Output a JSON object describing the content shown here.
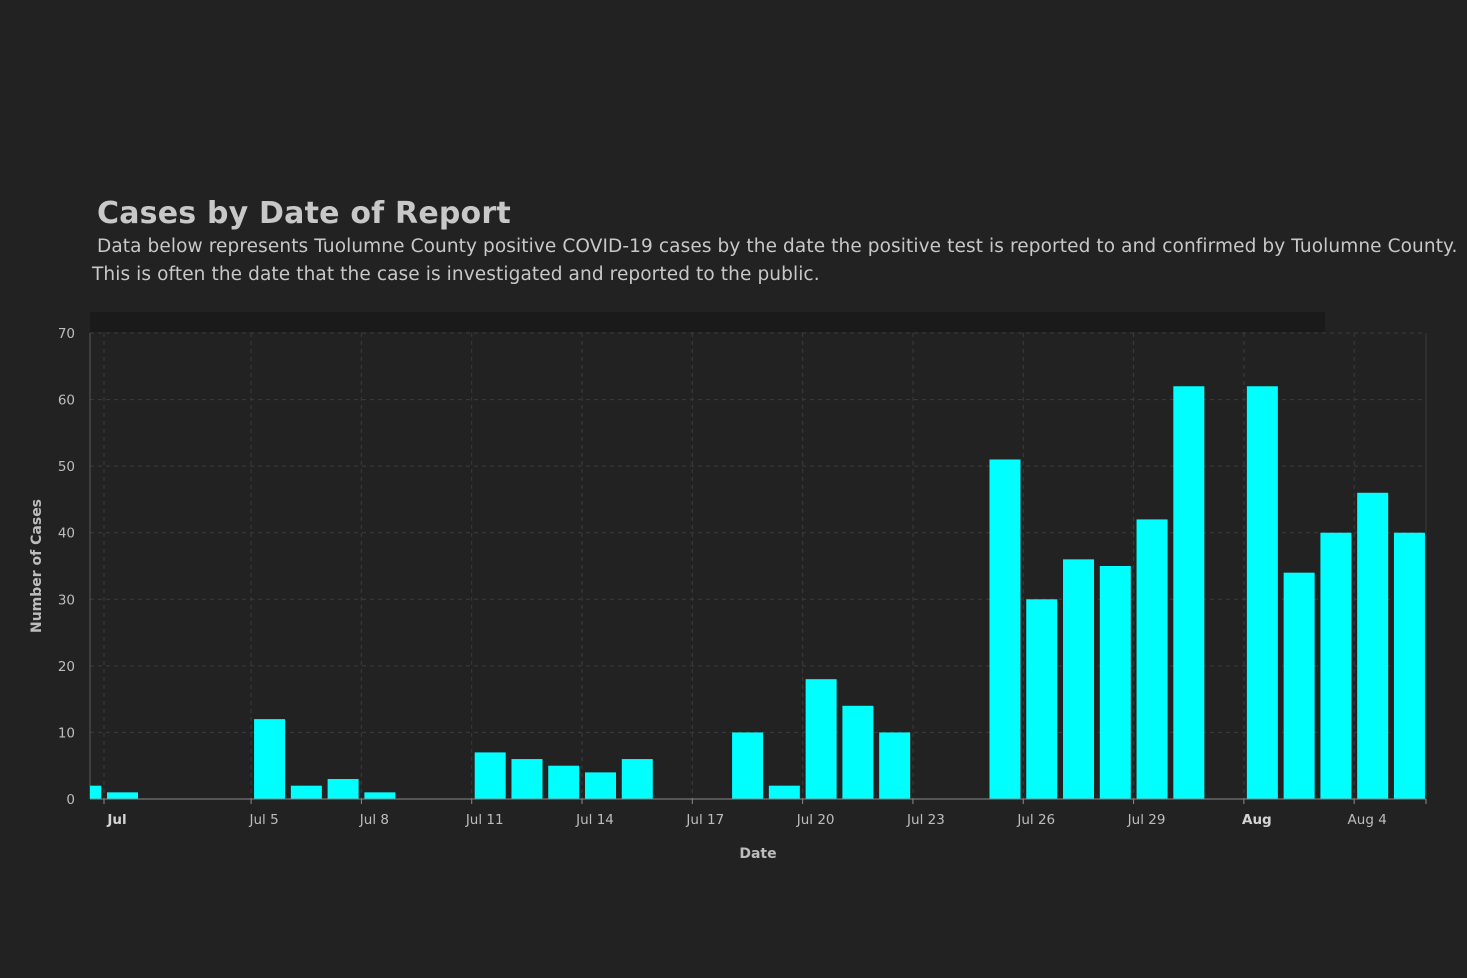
{
  "header": {
    "title": "Cases by Date of Report",
    "description_line1": "Data below represents Tuolumne County positive COVID-19 cases by the date the positive test is reported to and confirmed by Tuolumne County.",
    "description_line2": "This is often the date  that the case is investigated and reported to the public."
  },
  "colors": {
    "background": "#222222",
    "bar": "#00ffff",
    "grid": "#3c3c3c",
    "text": "#c8c8c8"
  },
  "chart_data": {
    "type": "bar",
    "title": "Cases by Date of Report",
    "xlabel": "Date",
    "ylabel": "Number of Cases",
    "ylim": [
      0,
      70
    ],
    "yticks": [
      0,
      10,
      20,
      30,
      40,
      50,
      60,
      70
    ],
    "x_tick_labels": [
      {
        "date": "2020-07-01",
        "label": "Jul",
        "major": true
      },
      {
        "date": "2020-07-05",
        "label": "Jul 5",
        "major": false
      },
      {
        "date": "2020-07-08",
        "label": "Jul 8",
        "major": false
      },
      {
        "date": "2020-07-11",
        "label": "Jul 11",
        "major": false
      },
      {
        "date": "2020-07-14",
        "label": "Jul 14",
        "major": false
      },
      {
        "date": "2020-07-17",
        "label": "Jul 17",
        "major": false
      },
      {
        "date": "2020-07-20",
        "label": "Jul 20",
        "major": false
      },
      {
        "date": "2020-07-23",
        "label": "Jul 23",
        "major": false
      },
      {
        "date": "2020-07-26",
        "label": "Jul 26",
        "major": false
      },
      {
        "date": "2020-07-29",
        "label": "Jul 29",
        "major": false
      },
      {
        "date": "2020-08-01",
        "label": "Aug",
        "major": true
      },
      {
        "date": "2020-08-04",
        "label": "Aug 4",
        "major": false
      }
    ],
    "grid": true,
    "series": [
      {
        "points": [
          {
            "date": "2020-06-30",
            "value": 2
          },
          {
            "date": "2020-07-01",
            "value": 1
          },
          {
            "date": "2020-07-02",
            "value": 0
          },
          {
            "date": "2020-07-03",
            "value": 0
          },
          {
            "date": "2020-07-04",
            "value": 0
          },
          {
            "date": "2020-07-05",
            "value": 12
          },
          {
            "date": "2020-07-06",
            "value": 2
          },
          {
            "date": "2020-07-07",
            "value": 3
          },
          {
            "date": "2020-07-08",
            "value": 1
          },
          {
            "date": "2020-07-09",
            "value": 0
          },
          {
            "date": "2020-07-10",
            "value": 0
          },
          {
            "date": "2020-07-11",
            "value": 7
          },
          {
            "date": "2020-07-12",
            "value": 6
          },
          {
            "date": "2020-07-13",
            "value": 5
          },
          {
            "date": "2020-07-14",
            "value": 4
          },
          {
            "date": "2020-07-15",
            "value": 6
          },
          {
            "date": "2020-07-16",
            "value": 0
          },
          {
            "date": "2020-07-17",
            "value": 0
          },
          {
            "date": "2020-07-18",
            "value": 10
          },
          {
            "date": "2020-07-19",
            "value": 2
          },
          {
            "date": "2020-07-20",
            "value": 18
          },
          {
            "date": "2020-07-21",
            "value": 14
          },
          {
            "date": "2020-07-22",
            "value": 10
          },
          {
            "date": "2020-07-23",
            "value": 0
          },
          {
            "date": "2020-07-24",
            "value": 0
          },
          {
            "date": "2020-07-25",
            "value": 51
          },
          {
            "date": "2020-07-26",
            "value": 30
          },
          {
            "date": "2020-07-27",
            "value": 36
          },
          {
            "date": "2020-07-28",
            "value": 35
          },
          {
            "date": "2020-07-29",
            "value": 42
          },
          {
            "date": "2020-07-30",
            "value": 62
          },
          {
            "date": "2020-07-31",
            "value": 0
          },
          {
            "date": "2020-08-01",
            "value": 62
          },
          {
            "date": "2020-08-02",
            "value": 34
          },
          {
            "date": "2020-08-03",
            "value": 40
          },
          {
            "date": "2020-08-04",
            "value": 46
          },
          {
            "date": "2020-08-05",
            "value": 40
          }
        ]
      }
    ]
  }
}
